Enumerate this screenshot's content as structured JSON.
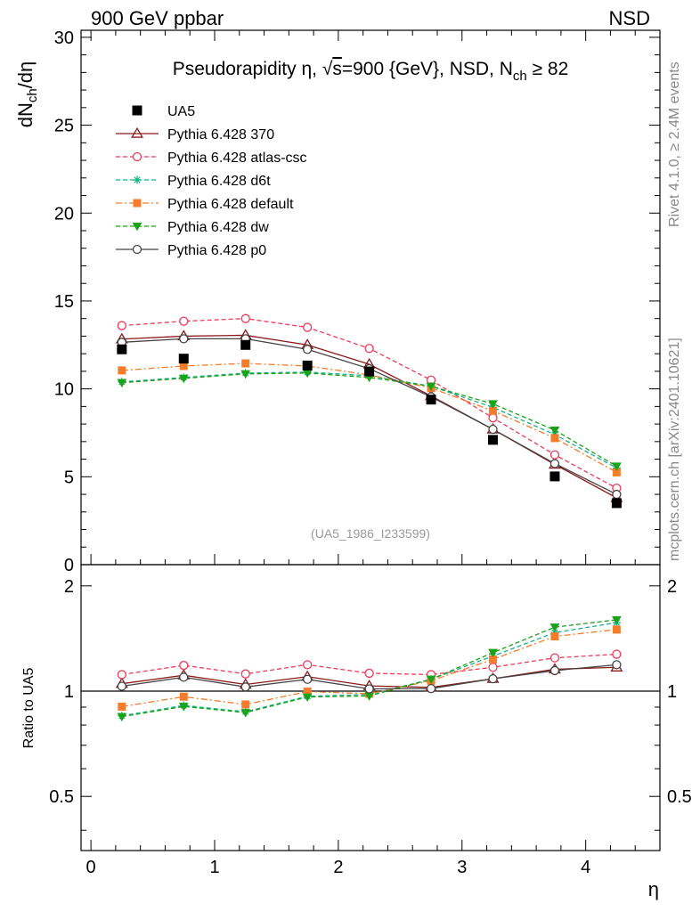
{
  "header": {
    "left": "900 GeV ppbar",
    "right": "NSD"
  },
  "side_labels": {
    "rivet": "Rivet 4.1.0, ≥ 2.4M events",
    "mcplots": "mcplots.cern.ch [arXiv:2401.10621]"
  },
  "chart_data": [
    {
      "type": "line",
      "panel": "main",
      "title": "Pseudorapidity η, √s=900 {GeV}, NSD, N_ch ≥ 82",
      "title_parts": {
        "a": "Pseudorapidity η, ",
        "sqrt": "√",
        "s": "s",
        "b": "=900 {GeV}, NSD, N",
        "sub": "ch",
        "c": " ≥ 82"
      },
      "ylabel": "dN_ch/dη",
      "ylabel_parts": {
        "a": "dN",
        "sub": "ch",
        "b": "/dη"
      },
      "xlabel": "η",
      "watermark": "(UA5_1986_I233599)",
      "xlim": [
        -0.08,
        4.6
      ],
      "ylim": [
        0,
        30.4
      ],
      "xticks": [
        0,
        1,
        2,
        3,
        4
      ],
      "xtick_labels": [
        "0",
        "1",
        "2",
        "3",
        "4"
      ],
      "yticks": [
        0,
        5,
        10,
        15,
        20,
        25,
        30
      ],
      "ytick_labels": [
        "0",
        "5",
        "10",
        "15",
        "20",
        "25",
        "30"
      ],
      "legend_position": "top-left",
      "x": [
        0.25,
        0.75,
        1.25,
        1.75,
        2.25,
        2.75,
        3.25,
        3.75,
        4.25
      ],
      "series": [
        {
          "name": "UA5",
          "label": "UA5",
          "color": "#000000",
          "marker": "square-filled",
          "line": "none",
          "values": [
            12.25,
            11.72,
            12.5,
            11.33,
            10.99,
            9.39,
            7.1,
            5.02,
            3.5
          ]
        },
        {
          "name": "Pythia 6.428 370",
          "label": "Pythia 6.428 370",
          "color": "#8b1a1a",
          "marker": "triangle-open",
          "line": "solid",
          "values": [
            12.83,
            13.0,
            13.05,
            12.5,
            11.4,
            9.6,
            7.7,
            5.7,
            3.8
          ]
        },
        {
          "name": "Pythia 6.428 atlas-csc",
          "label": "Pythia 6.428 atlas-csc",
          "color": "#ee3b5b",
          "marker": "circle-open",
          "line": "dashed",
          "values": [
            13.6,
            13.85,
            14.0,
            13.5,
            12.3,
            10.5,
            8.35,
            6.25,
            4.35
          ]
        },
        {
          "name": "Pythia 6.428 d6t",
          "label": "Pythia 6.428 d6t",
          "color": "#19b38a",
          "marker": "star",
          "line": "dashed",
          "values": [
            10.4,
            10.65,
            10.9,
            10.95,
            10.75,
            10.15,
            8.95,
            7.4,
            5.5
          ]
        },
        {
          "name": "Pythia 6.428 default",
          "label": "Pythia 6.428 default",
          "color": "#f57c2b",
          "marker": "square-filled",
          "line": "dashdot",
          "values": [
            11.05,
            11.3,
            11.45,
            11.3,
            10.8,
            10.05,
            8.75,
            7.2,
            5.25
          ]
        },
        {
          "name": "Pythia 6.428 dw",
          "label": "Pythia 6.428 dw",
          "color": "#1aa31a",
          "marker": "triangle-down-filled",
          "line": "dashed",
          "values": [
            10.35,
            10.6,
            10.85,
            10.9,
            10.65,
            10.15,
            9.15,
            7.65,
            5.6
          ]
        },
        {
          "name": "Pythia 6.428 p0",
          "label": "Pythia 6.428 p0",
          "color": "#444444",
          "marker": "circle-open",
          "line": "solid",
          "values": [
            12.65,
            12.85,
            12.85,
            12.25,
            11.15,
            9.55,
            7.7,
            5.75,
            4.0
          ]
        }
      ]
    },
    {
      "type": "line",
      "panel": "ratio",
      "ylabel": "Ratio to UA5",
      "ylim": [
        0.35,
        2.3
      ],
      "yscale": "log",
      "yticks": [
        0.5,
        1,
        2
      ],
      "ytick_labels": [
        "0.5",
        "1",
        "2"
      ],
      "reference": 1,
      "x": [
        0.25,
        0.75,
        1.25,
        1.75,
        2.25,
        2.75,
        3.25,
        3.75,
        4.25
      ],
      "series": [
        {
          "name": "Pythia 6.428 370",
          "color": "#8b1a1a",
          "marker": "triangle-open",
          "line": "solid",
          "values": [
            1.05,
            1.11,
            1.045,
            1.1,
            1.035,
            1.025,
            1.085,
            1.155,
            1.17
          ]
        },
        {
          "name": "Pythia 6.428 atlas-csc",
          "color": "#ee3b5b",
          "marker": "circle-open",
          "line": "dashed",
          "values": [
            1.115,
            1.185,
            1.12,
            1.19,
            1.125,
            1.115,
            1.17,
            1.245,
            1.275
          ]
        },
        {
          "name": "Pythia 6.428 d6t",
          "color": "#19b38a",
          "marker": "star",
          "line": "dashed",
          "values": [
            0.85,
            0.91,
            0.873,
            0.967,
            0.978,
            1.081,
            1.26,
            1.47,
            1.57
          ]
        },
        {
          "name": "Pythia 6.428 default",
          "color": "#f57c2b",
          "marker": "square-filled",
          "line": "dashdot",
          "values": [
            0.903,
            0.964,
            0.916,
            0.997,
            0.983,
            1.071,
            1.233,
            1.434,
            1.5
          ]
        },
        {
          "name": "Pythia 6.428 dw",
          "color": "#1aa31a",
          "marker": "triangle-down-filled",
          "line": "dashed",
          "values": [
            0.845,
            0.904,
            0.868,
            0.962,
            0.969,
            1.081,
            1.289,
            1.524,
            1.6
          ]
        },
        {
          "name": "Pythia 6.428 p0",
          "color": "#444444",
          "marker": "circle-open",
          "line": "solid",
          "values": [
            1.033,
            1.096,
            1.028,
            1.081,
            1.015,
            1.017,
            1.085,
            1.145,
            1.19
          ]
        }
      ]
    }
  ]
}
